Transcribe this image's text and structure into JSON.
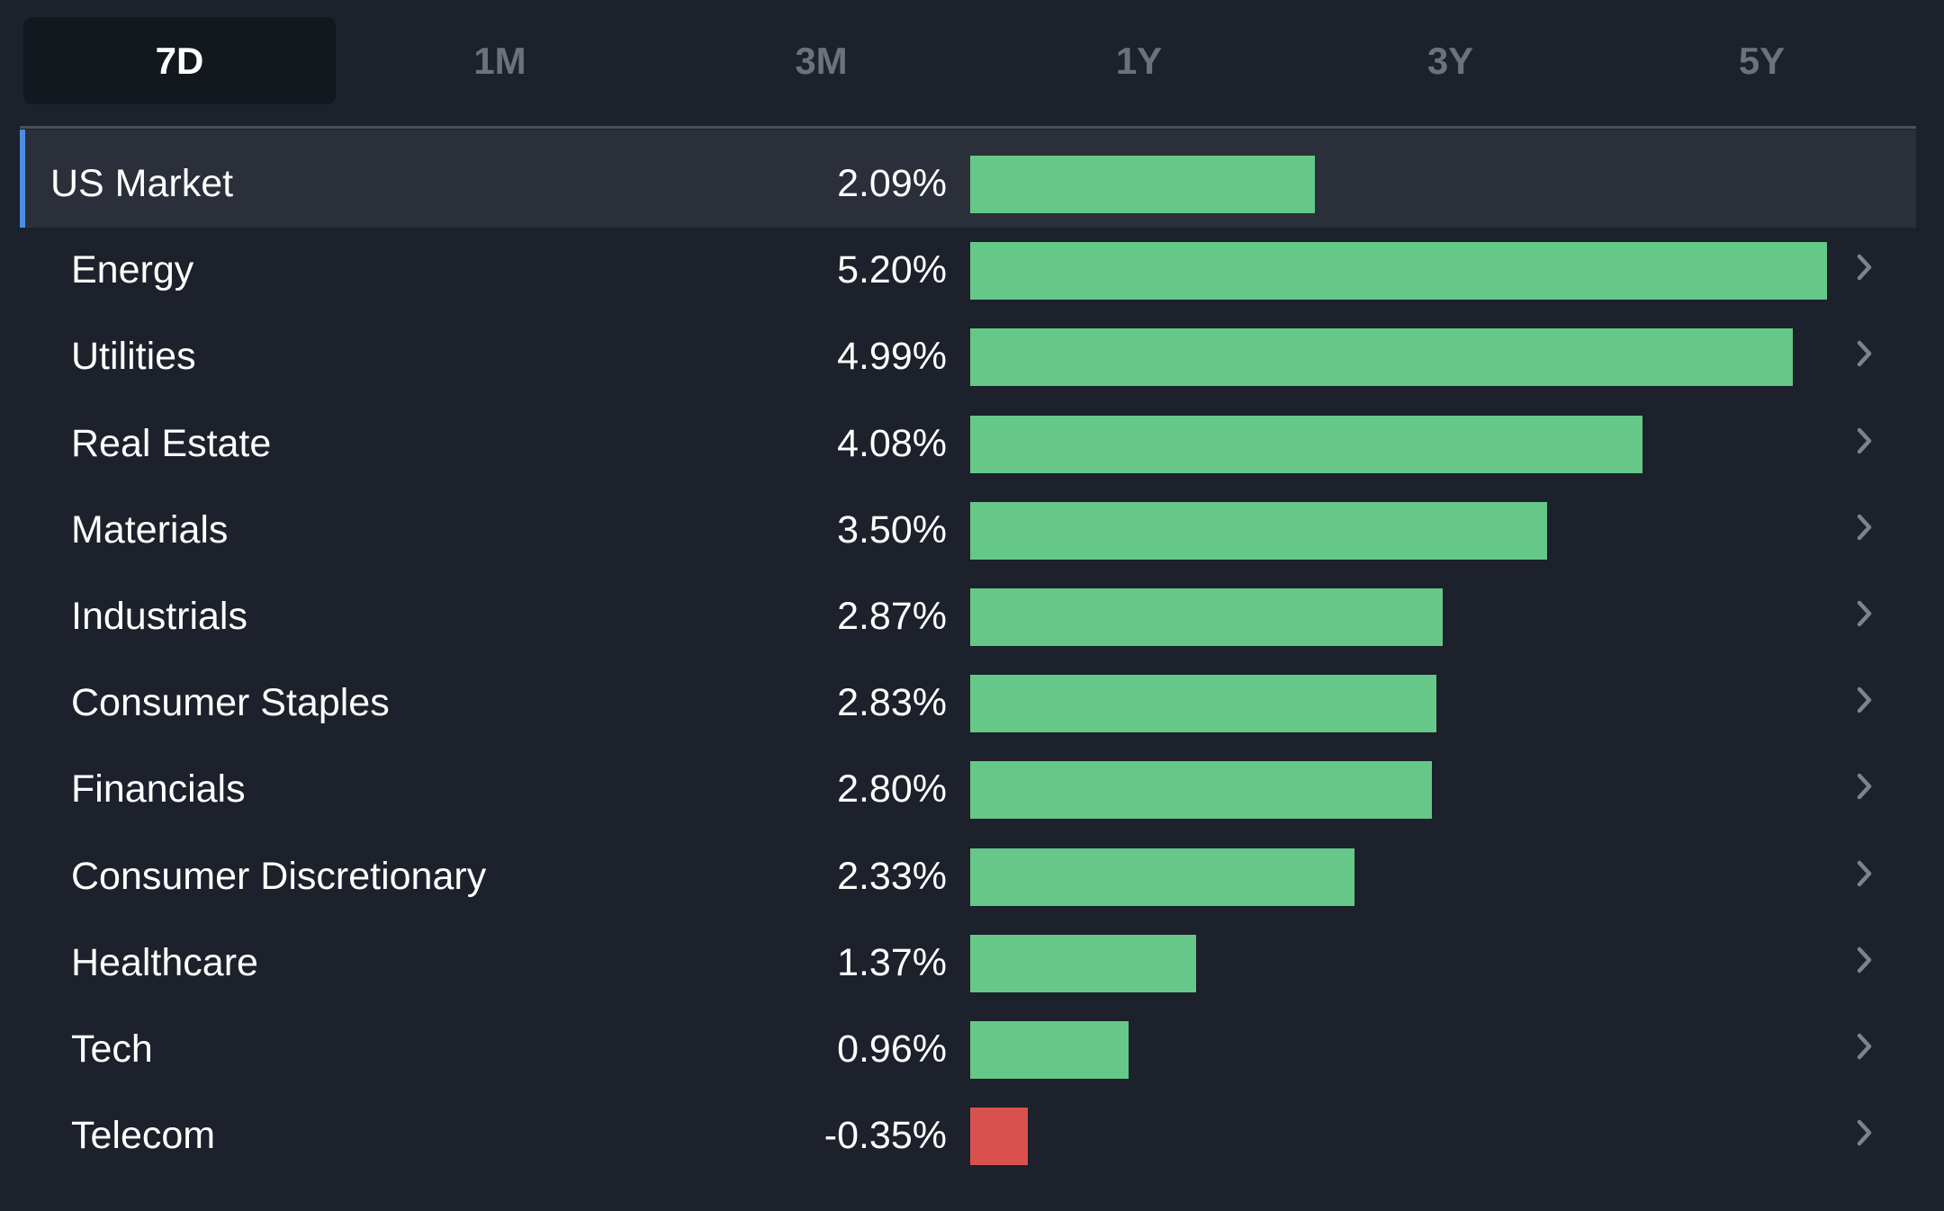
{
  "tabs": [
    {
      "label": "7D",
      "active": true
    },
    {
      "label": "1M",
      "active": false
    },
    {
      "label": "3M",
      "active": false
    },
    {
      "label": "1Y",
      "active": false
    },
    {
      "label": "3Y",
      "active": false
    },
    {
      "label": "5Y",
      "active": false
    }
  ],
  "colors": {
    "positive": "#65c888",
    "negative": "#d9514e",
    "accent": "#4a90e2",
    "chevron": "#7d838c"
  },
  "chart_data": {
    "type": "bar",
    "orientation": "horizontal",
    "title": "",
    "xlabel": "",
    "ylabel": "",
    "categories": [
      "US Market",
      "Energy",
      "Utilities",
      "Real Estate",
      "Materials",
      "Industrials",
      "Consumer Staples",
      "Financials",
      "Consumer Discretionary",
      "Healthcare",
      "Tech",
      "Telecom"
    ],
    "values": [
      2.09,
      5.2,
      4.99,
      4.08,
      3.5,
      2.87,
      2.83,
      2.8,
      2.33,
      1.37,
      0.96,
      -0.35
    ],
    "value_labels": [
      "2.09%",
      "5.20%",
      "4.99%",
      "4.08%",
      "3.50%",
      "2.87%",
      "2.83%",
      "2.80%",
      "2.33%",
      "1.37%",
      "0.96%",
      "-0.35%"
    ],
    "xlim": [
      0,
      5.2
    ],
    "grid": false,
    "legend": "none"
  }
}
